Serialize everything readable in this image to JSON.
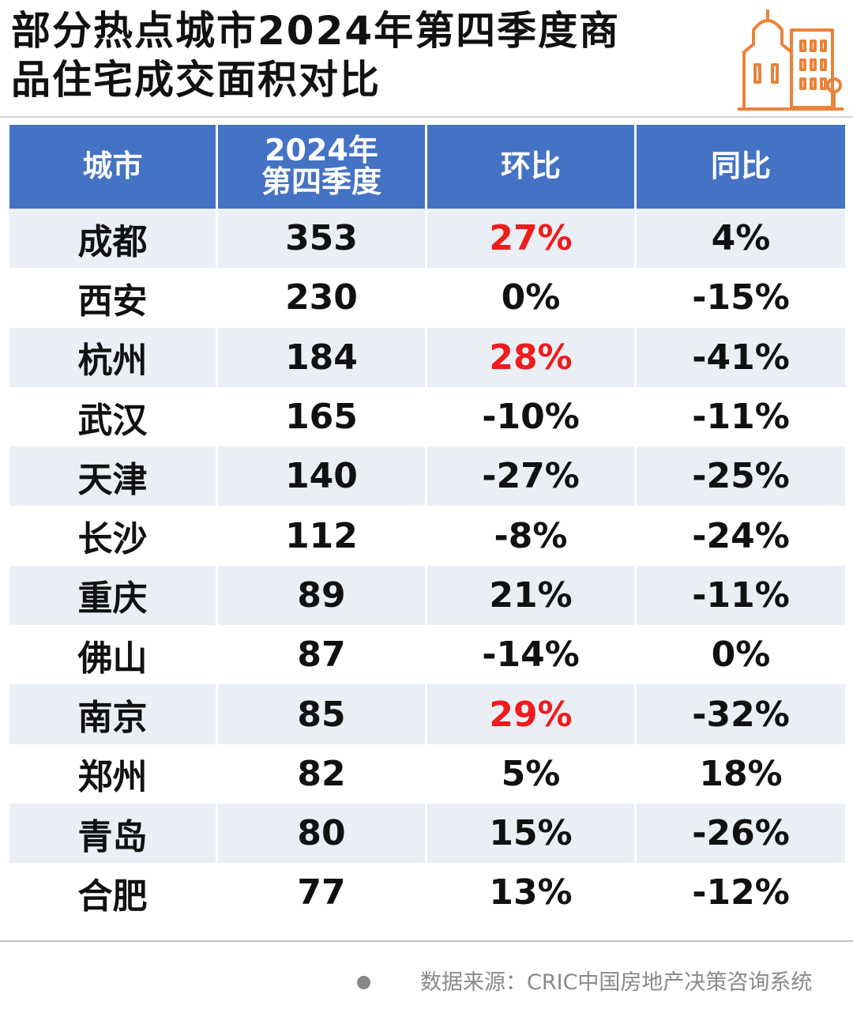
{
  "title": {
    "line1": "部分热点城市2024年第四季度商",
    "line2": "品住宅成交面积对比"
  },
  "logo": {
    "icon": "city-buildings-icon",
    "color": "#e8833a"
  },
  "colors": {
    "header": "#4472c4",
    "stripe": "#eaeef5",
    "highlight": "#ee1c1c"
  },
  "chart_data": {
    "type": "table",
    "columns": [
      "城市",
      "2024年第四季度",
      "环比",
      "同比"
    ],
    "header_labels": {
      "city": "城市",
      "q4_line1": "2024年",
      "q4_line2": "第四季度",
      "mom": "环比",
      "yoy": "同比"
    },
    "rows": [
      {
        "city": "成都",
        "q4": "353",
        "mom": "27%",
        "yoy": "4%",
        "highlight": true
      },
      {
        "city": "西安",
        "q4": "230",
        "mom": "0%",
        "yoy": "-15%",
        "highlight": false
      },
      {
        "city": "杭州",
        "q4": "184",
        "mom": "28%",
        "yoy": "-41%",
        "highlight": true
      },
      {
        "city": "武汉",
        "q4": "165",
        "mom": "-10%",
        "yoy": "-11%",
        "highlight": false
      },
      {
        "city": "天津",
        "q4": "140",
        "mom": "-27%",
        "yoy": "-25%",
        "highlight": false
      },
      {
        "city": "长沙",
        "q4": "112",
        "mom": "-8%",
        "yoy": "-24%",
        "highlight": false
      },
      {
        "city": "重庆",
        "q4": "89",
        "mom": "21%",
        "yoy": "-11%",
        "highlight": false
      },
      {
        "city": "佛山",
        "q4": "87",
        "mom": "-14%",
        "yoy": "0%",
        "highlight": false
      },
      {
        "city": "南京",
        "q4": "85",
        "mom": "29%",
        "yoy": "-32%",
        "highlight": true
      },
      {
        "city": "郑州",
        "q4": "82",
        "mom": "5%",
        "yoy": "18%",
        "highlight": false
      },
      {
        "city": "青岛",
        "q4": "80",
        "mom": "15%",
        "yoy": "-26%",
        "highlight": false
      },
      {
        "city": "合肥",
        "q4": "77",
        "mom": "13%",
        "yoy": "-12%",
        "highlight": false
      }
    ]
  },
  "source": "数据来源：CRIC中国房地产决策咨询系统"
}
